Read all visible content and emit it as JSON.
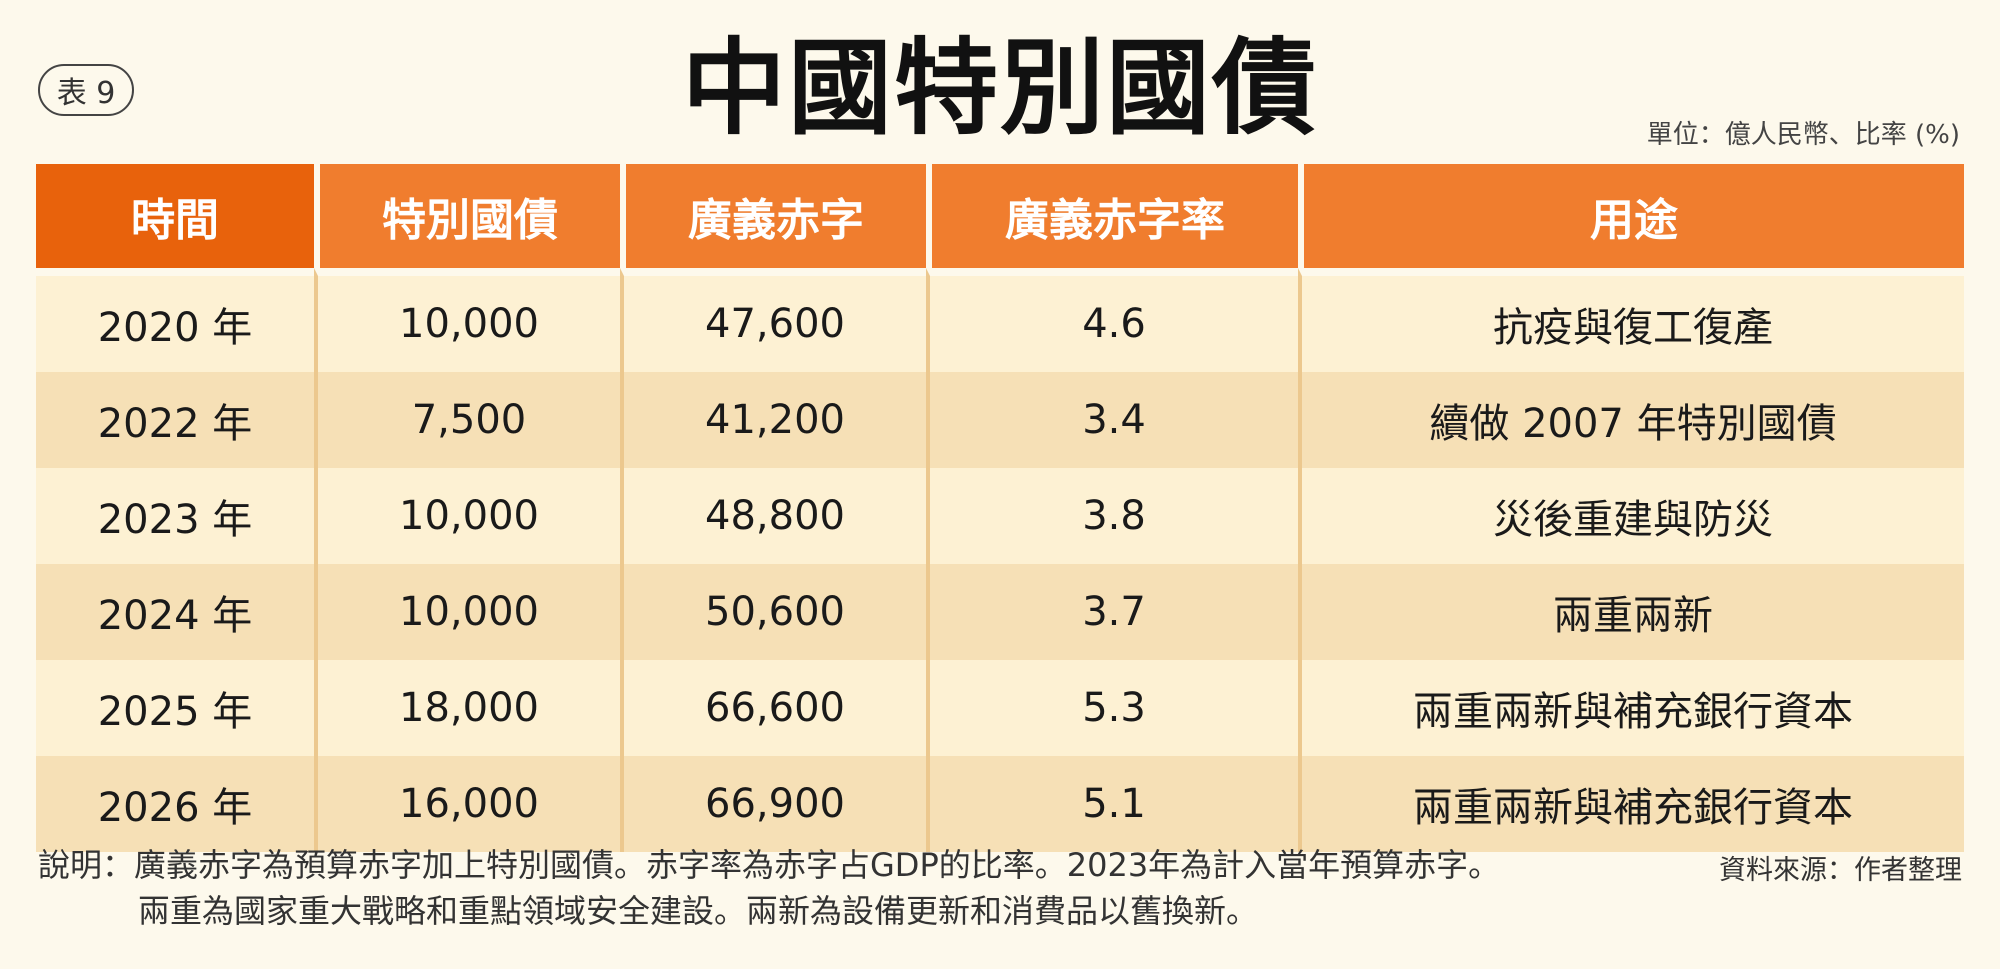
{
  "badge": "表 9",
  "unit": "單位：億人民幣、比率 (%)",
  "chart_data": {
    "type": "table",
    "title": "中國特別國債",
    "columns": [
      "時間",
      "特別國債",
      "廣義赤字",
      "廣義赤字率",
      "用途"
    ],
    "rows": [
      [
        "2020 年",
        "10,000",
        "47,600",
        "4.6",
        "抗疫與復工復產"
      ],
      [
        "2022 年",
        "7,500",
        "41,200",
        "3.4",
        "續做 2007 年特別國債"
      ],
      [
        "2023 年",
        "10,000",
        "48,800",
        "3.8",
        "災後重建與防災"
      ],
      [
        "2024 年",
        "10,000",
        "50,600",
        "3.7",
        "兩重兩新"
      ],
      [
        "2025 年",
        "18,000",
        "66,600",
        "5.3",
        "兩重兩新與補充銀行資本"
      ],
      [
        "2026 年",
        "16,000",
        "66,900",
        "5.1",
        "兩重兩新與補充銀行資本"
      ]
    ]
  },
  "notes": {
    "line1": "說明：廣義赤字為預算赤字加上特別國債。赤字率為赤字占GDP的比率。2023年為計入當年預算赤字。",
    "line2": "兩重為國家重大戰略和重點領域安全建設。兩新為設備更新和消費品以舊換新。"
  },
  "source": "資料來源：作者整理",
  "colors": {
    "header_first": "#e8620c",
    "header": "#f07d2e",
    "row_light": "#fdf1d3",
    "row_dark": "#f6e0b6",
    "background": "#fdf9ec"
  }
}
